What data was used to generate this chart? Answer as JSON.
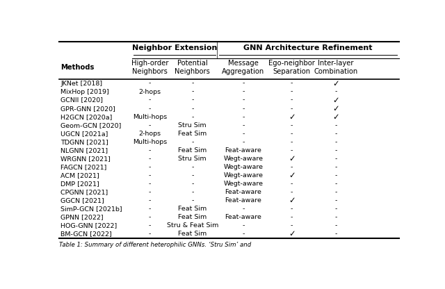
{
  "col_headers": [
    "Methods",
    "High-order\nNeighbors",
    "Potential\nNeighbors",
    "Message\nAggregation",
    "Ego-neighbor\nSeparation",
    "Inter-layer\nCombination"
  ],
  "group1_label": "Neighbor Extension",
  "group2_label": "GNN Architecture Refinement",
  "rows": [
    [
      "JKNet [2018]",
      "-",
      "-",
      "-",
      "-",
      "✓"
    ],
    [
      "MixHop [2019]",
      "2-hops",
      "-",
      "-",
      "-",
      "-"
    ],
    [
      "GCNII [2020]",
      "-",
      "-",
      "-",
      "-",
      "✓"
    ],
    [
      "GPR-GNN [2020]",
      "-",
      "-",
      "-",
      "-",
      "✓"
    ],
    [
      "H2GCN [2020a]",
      "Multi-hops",
      "-",
      "-",
      "✓",
      "✓"
    ],
    [
      "Geom-GCN [2020]",
      "-",
      "Stru Sim",
      "-",
      "-",
      "-"
    ],
    [
      "UGCN [2021a]",
      "2-hops",
      "Feat Sim",
      "-",
      "-",
      "-"
    ],
    [
      "TDGNN [2021]",
      "Multi-hops",
      "-",
      "-",
      "-",
      "-"
    ],
    [
      "NLGNN [2021]",
      "-",
      "Feat Sim",
      "Feat-aware",
      "-",
      "-"
    ],
    [
      "WRGNN [2021]",
      "-",
      "Stru Sim",
      "Wegt-aware",
      "✓",
      "-"
    ],
    [
      "FAGCN [2021]",
      "-",
      "-",
      "Wegt-aware",
      "-",
      "-"
    ],
    [
      "ACM [2021]",
      "-",
      "-",
      "Wegt-aware",
      "✓",
      "-"
    ],
    [
      "DMP [2021]",
      "-",
      "-",
      "Wegt-aware",
      "-",
      "-"
    ],
    [
      "CPGNN [2021]",
      "-",
      "-",
      "Feat-aware",
      "-",
      "-"
    ],
    [
      "GGCN [2021]",
      "-",
      "-",
      "Feat-aware",
      "✓",
      "-"
    ],
    [
      "SimP-GCN [2021b]",
      "-",
      "Feat Sim",
      "-",
      "-",
      "-"
    ],
    [
      "GPNN [2022]",
      "-",
      "Feat Sim",
      "Feat-aware",
      "-",
      "-"
    ],
    [
      "HOG-GNN [2022]",
      "-",
      "Stru & Feat Sim",
      "-",
      "-",
      "-"
    ],
    [
      "BM-GCN [2022]",
      "-",
      "Feat Sim",
      "-",
      "✓",
      "-"
    ]
  ],
  "footer": "Table 1: Summary of different heterophilic GNNs. ‘Stru Sim’ and",
  "bg_color": "white"
}
